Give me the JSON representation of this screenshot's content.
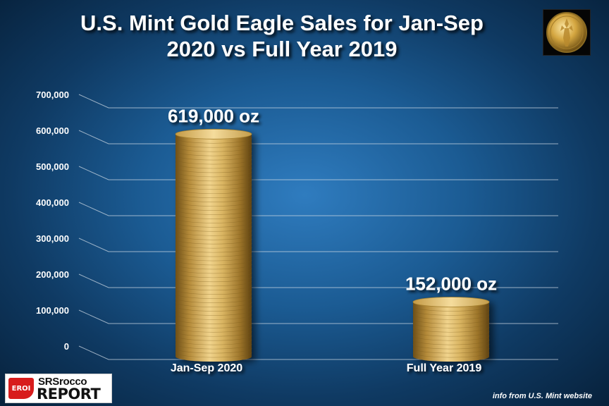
{
  "colors": {
    "background_center": "#2f7cbf",
    "background_edge": "#07213b",
    "gridline": "#c9d6e2",
    "gold_light": "#f3d690",
    "gold_mid": "#c9a14b",
    "gold_dark": "#7a5a1c",
    "text": "#ffffff"
  },
  "chart_data": {
    "type": "bar",
    "title": "U.S. Mint Gold Eagle Sales for Jan-Sep 2020 vs Full Year 2019",
    "title_lines": [
      "U.S. Mint Gold Eagle Sales for Jan-Sep",
      "2020 vs Full Year 2019"
    ],
    "categories": [
      "Jan-Sep 2020",
      "Full Year 2019"
    ],
    "values": [
      619000,
      152000
    ],
    "data_labels": [
      "619,000 oz",
      "152,000 oz"
    ],
    "yticks": [
      0,
      100000,
      200000,
      300000,
      400000,
      500000,
      600000,
      700000
    ],
    "ytick_labels": [
      "0",
      "100,000",
      "200,000",
      "300,000",
      "400,000",
      "500,000",
      "600,000",
      "700,000"
    ],
    "ylim": [
      0,
      700000
    ],
    "grid": true,
    "legend": "none",
    "xlabel": "",
    "ylabel": ""
  },
  "logo": {
    "badge": "EROI",
    "line1": "SRSrocco",
    "line2": "REPORT"
  },
  "source_note": "info from U.S. Mint website",
  "icons": {
    "coin": "gold-eagle-coin-icon"
  }
}
